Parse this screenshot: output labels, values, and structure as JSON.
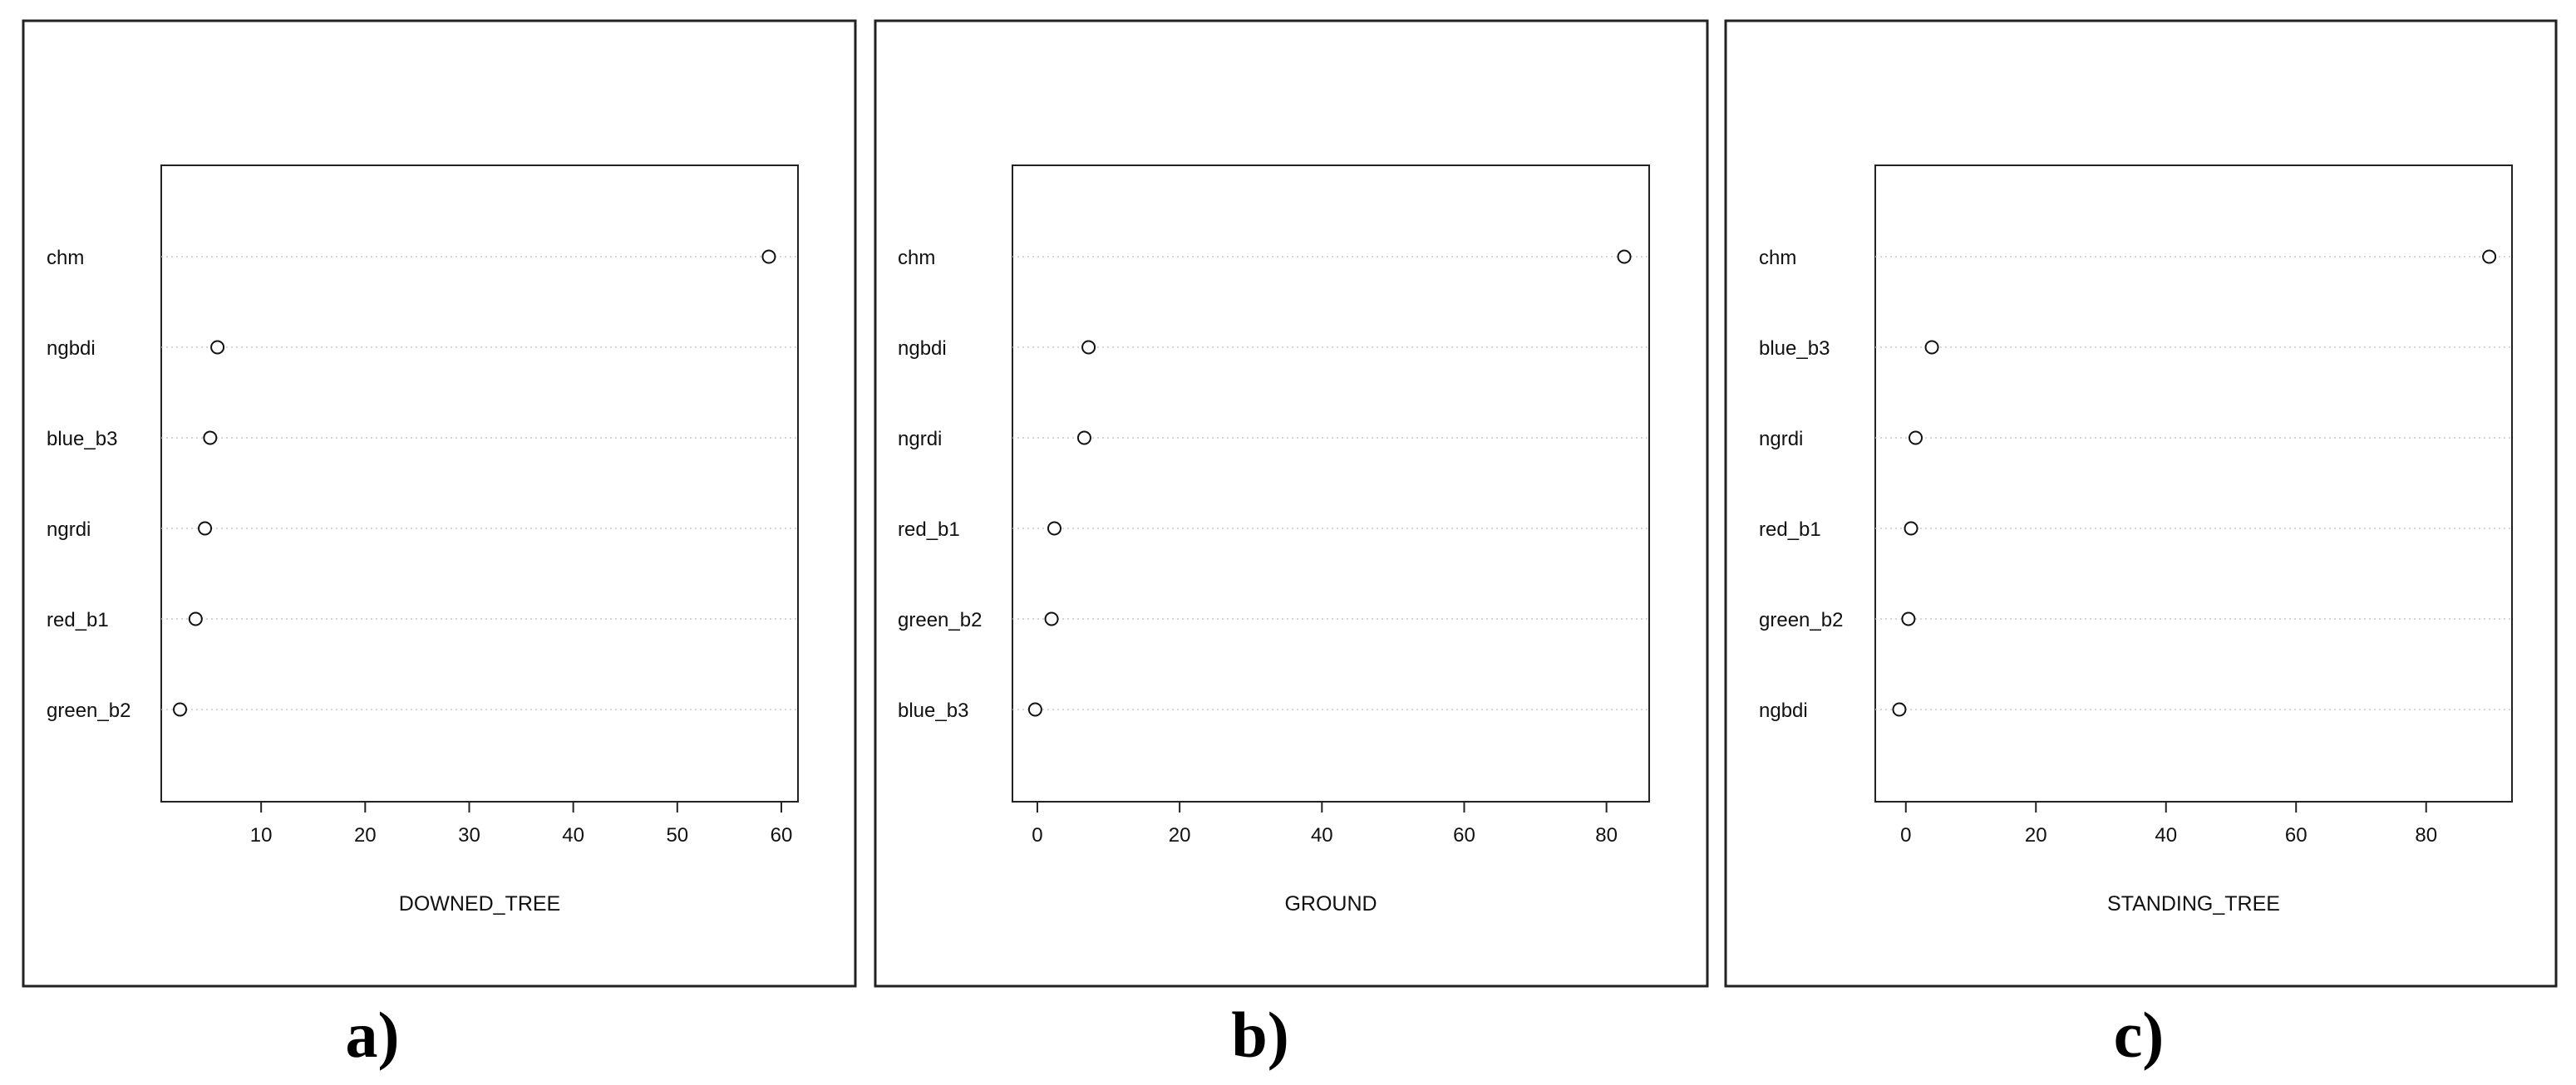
{
  "chart_data": [
    {
      "type": "scatter",
      "variant": "dotchart",
      "panel_label": "a)",
      "xlabel": "DOWNED_TREE",
      "xticks": [
        10,
        20,
        30,
        40,
        50,
        60
      ],
      "xlim": [
        0.4,
        61.6
      ],
      "categories": [
        "chm",
        "ngbdi",
        "blue_b3",
        "ngrdi",
        "red_b1",
        "green_b2"
      ],
      "values": [
        58.8,
        5.8,
        5.1,
        4.6,
        3.7,
        2.2
      ],
      "grid": "dotted horizontal guides"
    },
    {
      "type": "scatter",
      "variant": "dotchart",
      "panel_label": "b)",
      "xlabel": "GROUND",
      "xticks": [
        0,
        20,
        40,
        60,
        80
      ],
      "xlim": [
        -3.5,
        86
      ],
      "categories": [
        "chm",
        "ngbdi",
        "ngrdi",
        "red_b1",
        "green_b2",
        "blue_b3"
      ],
      "values": [
        82.5,
        7.2,
        6.6,
        2.4,
        2.0,
        -0.3
      ],
      "grid": "dotted horizontal guides"
    },
    {
      "type": "scatter",
      "variant": "dotchart",
      "panel_label": "c)",
      "xlabel": "STANDING_TREE",
      "xticks": [
        0,
        20,
        40,
        60,
        80
      ],
      "xlim": [
        -4.7,
        93.2
      ],
      "categories": [
        "chm",
        "blue_b3",
        "ngrdi",
        "red_b1",
        "green_b2",
        "ngbdi"
      ],
      "values": [
        89.7,
        4.0,
        1.5,
        0.8,
        0.4,
        -1.0
      ],
      "grid": "dotted horizontal guides"
    }
  ]
}
